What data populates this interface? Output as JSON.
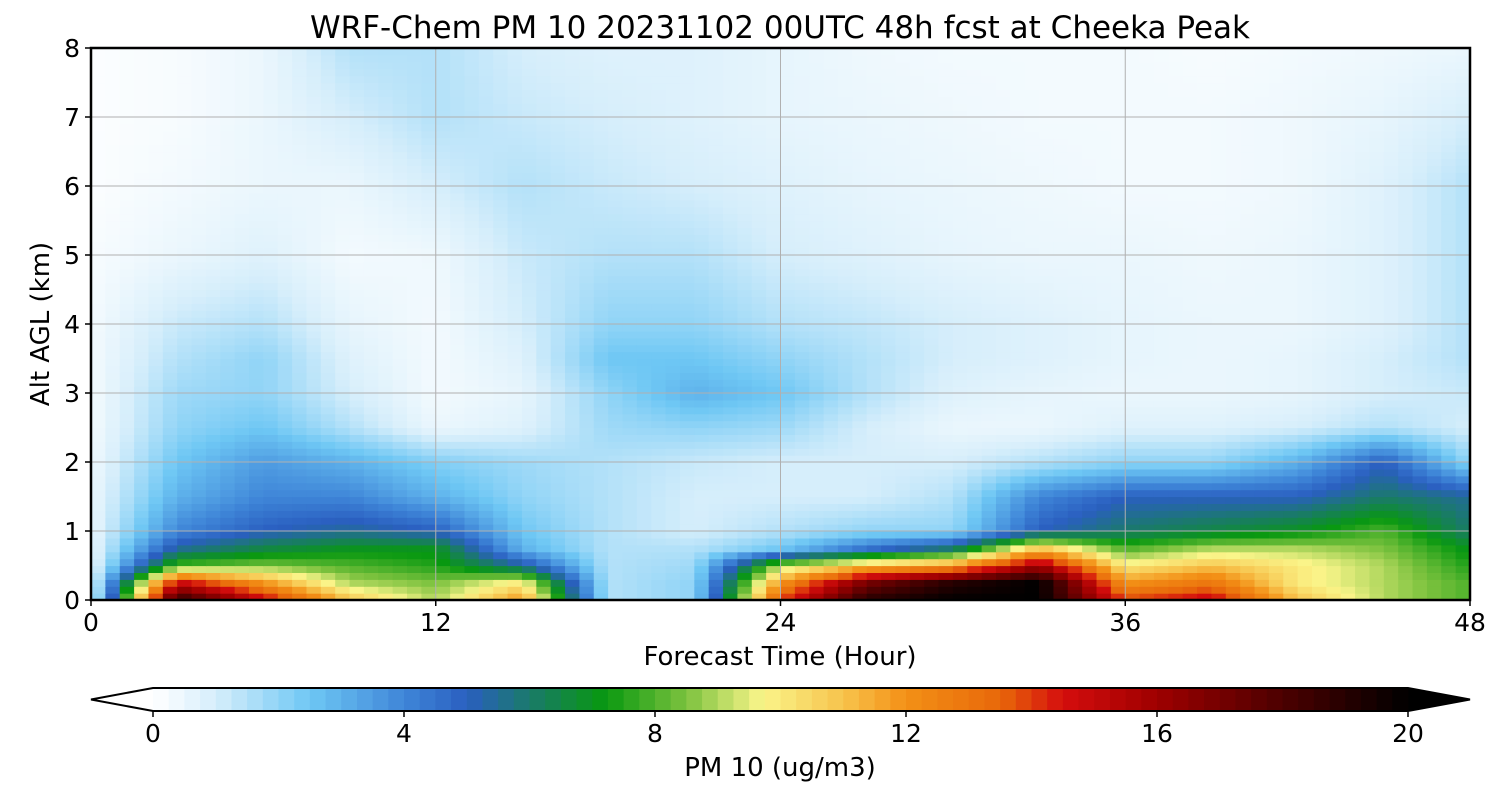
{
  "chart_data": {
    "type": "heatmap",
    "title": "WRF-Chem PM 10  20231102 00UTC 48h fcst at Cheeka Peak",
    "xlabel": "Forecast Time (Hour)",
    "ylabel": "Alt AGL (km)",
    "xlim": [
      0,
      48
    ],
    "ylim": [
      0,
      8
    ],
    "xticks": [
      "0",
      "12",
      "24",
      "36",
      "48"
    ],
    "yticks": [
      "0",
      "1",
      "2",
      "3",
      "4",
      "5",
      "6",
      "7",
      "8"
    ],
    "grid": true,
    "x_hours": [
      0,
      3,
      6,
      9,
      12,
      15,
      18,
      21,
      24,
      27,
      30,
      33,
      36,
      39,
      42,
      45,
      48
    ],
    "y_km": [
      0,
      0.25,
      0.5,
      0.75,
      1,
      1.5,
      2,
      2.5,
      3,
      3.5,
      4,
      5,
      6,
      7,
      8
    ],
    "z": [
      [
        0.5,
        19,
        15,
        11,
        9,
        12,
        1.5,
        2,
        14,
        19,
        20,
        20,
        14,
        15,
        11,
        9,
        8
      ],
      [
        0.5,
        15,
        12,
        9,
        8.5,
        10,
        1.5,
        2,
        12,
        17,
        19,
        20,
        12,
        13,
        10,
        9,
        8
      ],
      [
        0.5,
        8,
        8.5,
        8,
        7.5,
        5.5,
        1.5,
        1.8,
        9,
        11,
        12,
        16,
        10,
        11,
        10,
        9,
        7.5
      ],
      [
        0.5,
        5.5,
        6.5,
        7,
        7,
        3,
        1.5,
        1.5,
        2.5,
        4.5,
        6,
        11,
        8,
        9,
        9,
        8.5,
        7
      ],
      [
        0.5,
        4,
        5,
        5.5,
        5,
        2.5,
        1.5,
        1,
        1.5,
        2,
        2,
        5,
        6,
        6.5,
        7,
        8,
        6
      ],
      [
        0.5,
        3,
        4,
        4,
        3,
        2,
        1.5,
        1,
        1,
        1,
        1.5,
        4,
        5,
        5,
        5,
        6,
        5.5
      ],
      [
        0.4,
        2.5,
        3.5,
        3,
        2.2,
        1.8,
        1.5,
        1.2,
        1,
        1,
        1,
        1.5,
        2,
        2,
        3,
        5,
        2
      ],
      [
        0.3,
        2,
        2.5,
        1.5,
        0.5,
        0.8,
        1.8,
        2,
        1.8,
        1,
        0.5,
        0.5,
        0.8,
        0.8,
        1,
        1.5,
        1
      ],
      [
        0.3,
        1.8,
        2,
        1,
        0.3,
        0.6,
        2,
        3,
        2.5,
        1.5,
        0.8,
        0.6,
        0.5,
        0.5,
        0.6,
        1,
        1.2
      ],
      [
        0.3,
        1.5,
        2,
        0.8,
        0.3,
        0.8,
        2.5,
        2.5,
        2,
        1.5,
        1,
        0.8,
        0.6,
        0.5,
        0.6,
        1,
        1.5
      ],
      [
        0.3,
        1.2,
        1.5,
        0.6,
        0.3,
        1,
        2,
        2,
        1.5,
        1.3,
        1,
        0.8,
        0.6,
        0.5,
        0.5,
        0.8,
        1.5
      ],
      [
        0.2,
        0.5,
        0.8,
        0.3,
        0.4,
        1.2,
        1.5,
        1.5,
        1,
        0.8,
        0.6,
        0.5,
        0.5,
        0.4,
        0.5,
        0.8,
        1.5
      ],
      [
        0.1,
        0.3,
        0.5,
        0.5,
        1,
        1.5,
        1.2,
        1,
        0.8,
        0.6,
        0.5,
        0.4,
        0.3,
        0.3,
        0.4,
        0.8,
        1.5
      ],
      [
        0.1,
        0.2,
        0.5,
        1,
        1.5,
        1.2,
        1,
        0.8,
        0.6,
        0.5,
        0.4,
        0.3,
        0.3,
        0.3,
        0.4,
        0.6,
        1
      ],
      [
        0.1,
        0.2,
        0.5,
        1.5,
        1.5,
        1,
        0.8,
        0.8,
        0.6,
        0.4,
        0.3,
        0.3,
        0.3,
        0.2,
        0.3,
        0.4,
        0.5
      ]
    ],
    "colorbar": {
      "label": "PM 10  (ug/m3)",
      "min": 0,
      "max": 20,
      "ticks": [
        "0",
        "4",
        "8",
        "12",
        "16",
        "20"
      ],
      "extend": "both",
      "stops": [
        [
          0,
          "#ffffff"
        ],
        [
          1,
          "#d6eefb"
        ],
        [
          2.5,
          "#6ec7f4"
        ],
        [
          4,
          "#3f86d8"
        ],
        [
          5,
          "#2a5fc0"
        ],
        [
          6,
          "#1a7a6a"
        ],
        [
          7.2,
          "#089810"
        ],
        [
          8.5,
          "#7cc23e"
        ],
        [
          9.7,
          "#faf58a"
        ],
        [
          11,
          "#f7c34c"
        ],
        [
          12,
          "#f39016"
        ],
        [
          13.5,
          "#e8680a"
        ],
        [
          14.5,
          "#d40d0d"
        ],
        [
          16,
          "#9e0000"
        ],
        [
          18,
          "#4c0000"
        ],
        [
          20,
          "#000000"
        ]
      ]
    }
  }
}
